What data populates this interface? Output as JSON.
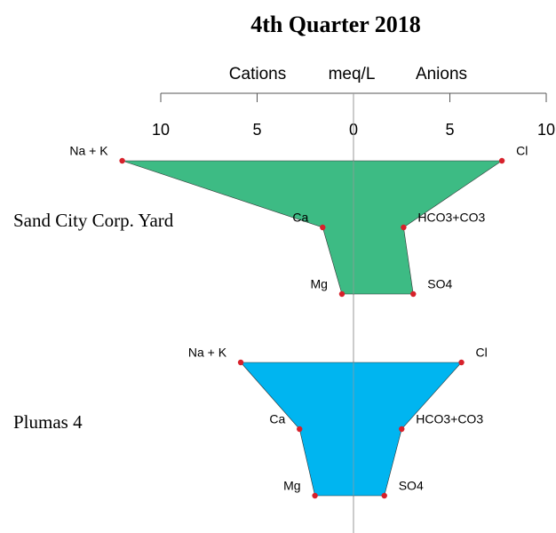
{
  "chart_data": {
    "type": "stiff",
    "title": "4th Quarter 2018",
    "cation_label": "Cations",
    "unit_label": "meq/L",
    "anion_label": "Anions",
    "xlim": [
      -10,
      10
    ],
    "xticks": [
      {
        "value": -10,
        "label": "10"
      },
      {
        "value": -5,
        "label": "5"
      },
      0,
      5,
      10
    ],
    "cations": [
      "Na + K",
      "Ca",
      "Mg"
    ],
    "anions": [
      "Cl",
      "HCO3+CO3",
      "SO4"
    ],
    "point_color": "#d7212b",
    "series": [
      {
        "name": "Sand City Corp. Yard",
        "color": "#3dbb84",
        "cation_values": [
          12.0,
          1.6,
          0.6
        ],
        "anion_values": [
          7.7,
          2.6,
          3.1
        ]
      },
      {
        "name": "Plumas 4",
        "color": "#00b5f0",
        "cation_values": [
          5.85,
          2.8,
          2.0
        ],
        "anion_values": [
          5.6,
          2.5,
          1.6
        ]
      }
    ]
  }
}
